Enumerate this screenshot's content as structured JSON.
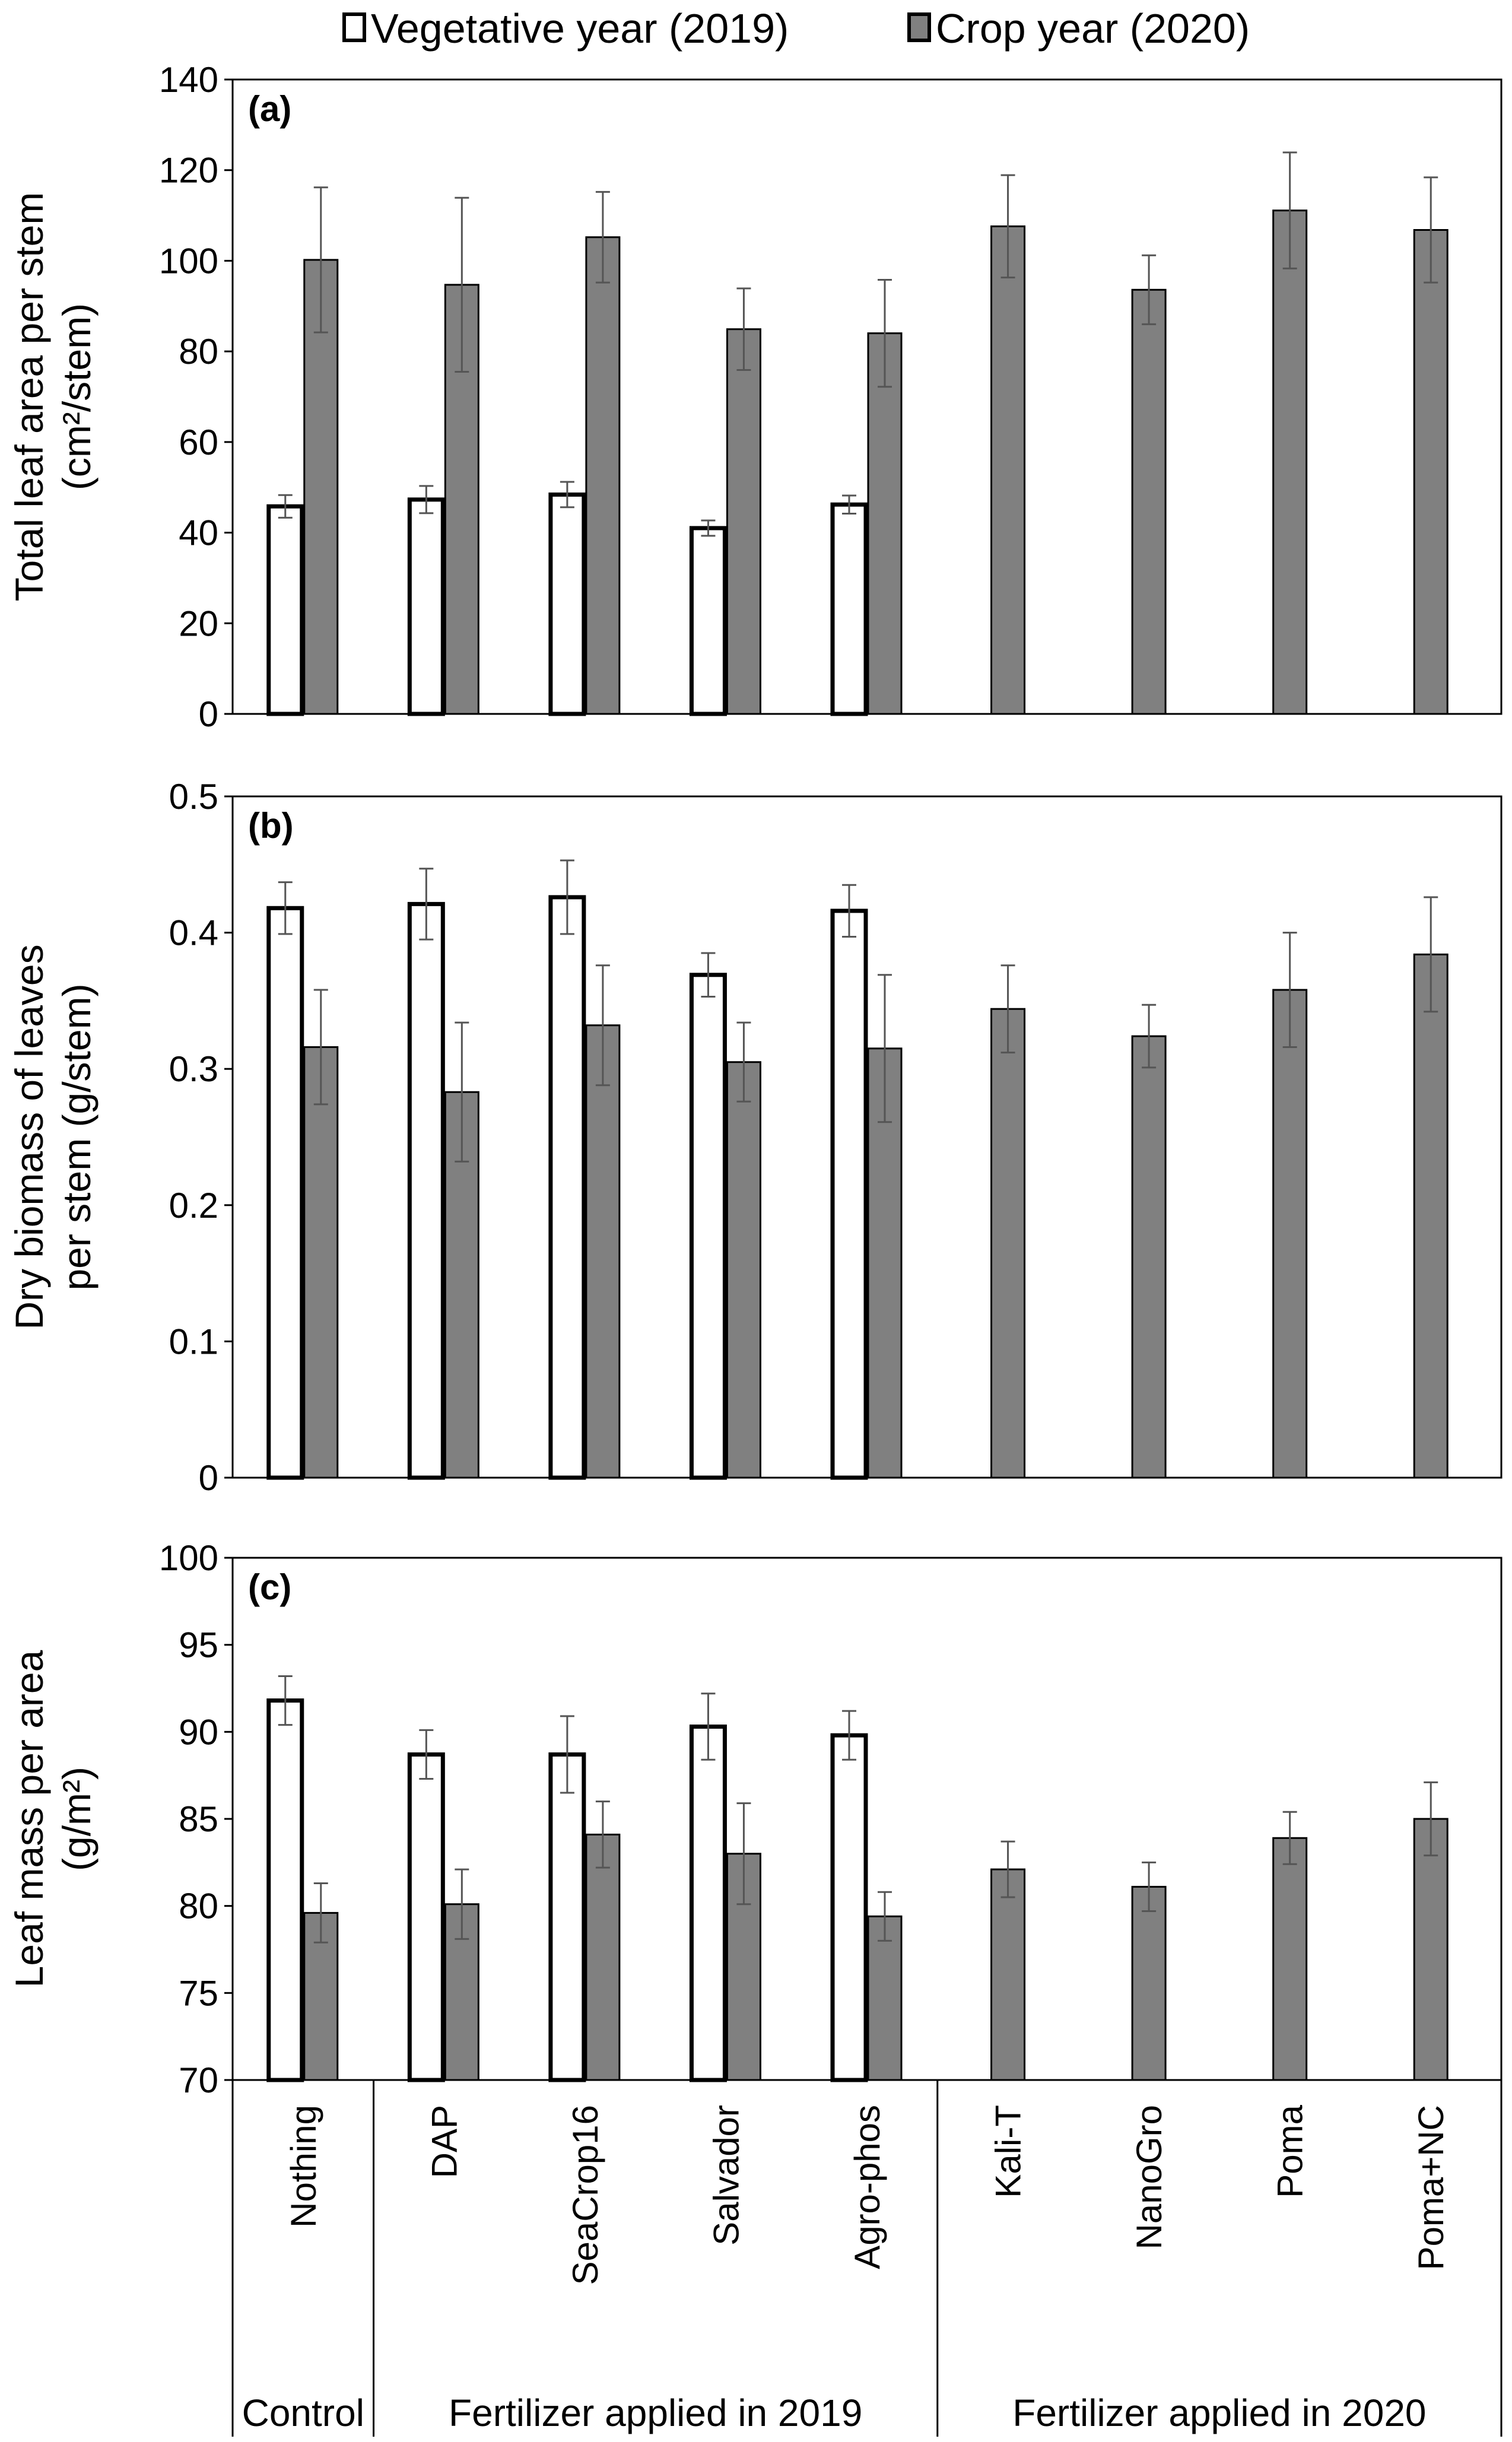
{
  "legend": {
    "items": [
      {
        "label": "Vegetative year (2019)",
        "color": "#ffffff"
      },
      {
        "label": "Crop year (2020)",
        "color": "#808080"
      }
    ]
  },
  "chart_data": [
    {
      "type": "bar",
      "panel": "(a)",
      "ylabel": [
        "Total leaf area per stem",
        "(cm²/stem)"
      ],
      "ylim": [
        0,
        140
      ],
      "yticks": [
        0,
        20,
        40,
        60,
        80,
        100,
        120,
        140
      ],
      "categories": [
        "Nothing",
        "DAP",
        "SeaCrop16",
        "Salvador",
        "Agro-phos",
        "Kali-T",
        "NanoGro",
        "Poma",
        "Poma+NC"
      ],
      "series": [
        {
          "name": "Vegetative year (2019)",
          "values": [
            45.8,
            47.3,
            48.4,
            41.0,
            46.2,
            null,
            null,
            null,
            null
          ],
          "errors": [
            2.5,
            3.0,
            2.8,
            1.7,
            2.0,
            null,
            null,
            null,
            null
          ]
        },
        {
          "name": "Crop year (2020)",
          "values": [
            100.2,
            94.7,
            105.2,
            84.9,
            84.0,
            107.6,
            93.6,
            111.1,
            106.8
          ],
          "errors": [
            16.0,
            19.2,
            10.0,
            9.0,
            11.8,
            11.3,
            7.6,
            12.8,
            11.6
          ]
        }
      ]
    },
    {
      "type": "bar",
      "panel": "(b)",
      "ylabel": [
        "Dry biomass of leaves",
        "per stem (g/stem)"
      ],
      "ylim": [
        0,
        0.5
      ],
      "yticks": [
        0,
        0.1,
        0.2,
        0.3,
        0.4,
        0.5
      ],
      "categories": [
        "Nothing",
        "DAP",
        "SeaCrop16",
        "Salvador",
        "Agro-phos",
        "Kali-T",
        "NanoGro",
        "Poma",
        "Poma+NC"
      ],
      "series": [
        {
          "name": "Vegetative year (2019)",
          "values": [
            0.418,
            0.421,
            0.426,
            0.369,
            0.416,
            null,
            null,
            null,
            null
          ],
          "errors": [
            0.019,
            0.026,
            0.027,
            0.016,
            0.019,
            null,
            null,
            null,
            null
          ]
        },
        {
          "name": "Crop year (2020)",
          "values": [
            0.316,
            0.283,
            0.332,
            0.305,
            0.315,
            0.344,
            0.324,
            0.358,
            0.384
          ],
          "errors": [
            0.042,
            0.051,
            0.044,
            0.029,
            0.054,
            0.032,
            0.023,
            0.042,
            0.042
          ]
        }
      ]
    },
    {
      "type": "bar",
      "panel": "(c)",
      "ylabel": [
        "Leaf mass per area",
        "(g/m²)"
      ],
      "ylim": [
        70,
        100
      ],
      "yticks": [
        70,
        75,
        80,
        85,
        90,
        95,
        100
      ],
      "categories": [
        "Nothing",
        "DAP",
        "SeaCrop16",
        "Salvador",
        "Agro-phos",
        "Kali-T",
        "NanoGro",
        "Poma",
        "Poma+NC"
      ],
      "series": [
        {
          "name": "Vegetative year (2019)",
          "values": [
            91.8,
            88.7,
            88.7,
            90.3,
            89.8,
            null,
            null,
            null,
            null
          ],
          "errors": [
            1.4,
            1.4,
            2.2,
            1.9,
            1.4,
            null,
            null,
            null,
            null
          ]
        },
        {
          "name": "Crop year (2020)",
          "values": [
            79.6,
            80.1,
            84.1,
            83.0,
            79.4,
            82.1,
            81.1,
            83.9,
            85.0
          ],
          "errors": [
            1.7,
            2.0,
            1.9,
            2.9,
            1.4,
            1.6,
            1.4,
            1.5,
            2.1
          ]
        }
      ]
    }
  ],
  "xaxis": {
    "categories": [
      "Nothing",
      "DAP",
      "SeaCrop16",
      "Salvador",
      "Agro-phos",
      "Kali-T",
      "NanoGro",
      "Poma",
      "Poma+NC"
    ],
    "groups": [
      {
        "label": "Control",
        "from": 0,
        "to": 0
      },
      {
        "label": "Fertilizer applied in 2019",
        "from": 1,
        "to": 4
      },
      {
        "label": "Fertilizer applied in 2020",
        "from": 5,
        "to": 8
      }
    ]
  }
}
